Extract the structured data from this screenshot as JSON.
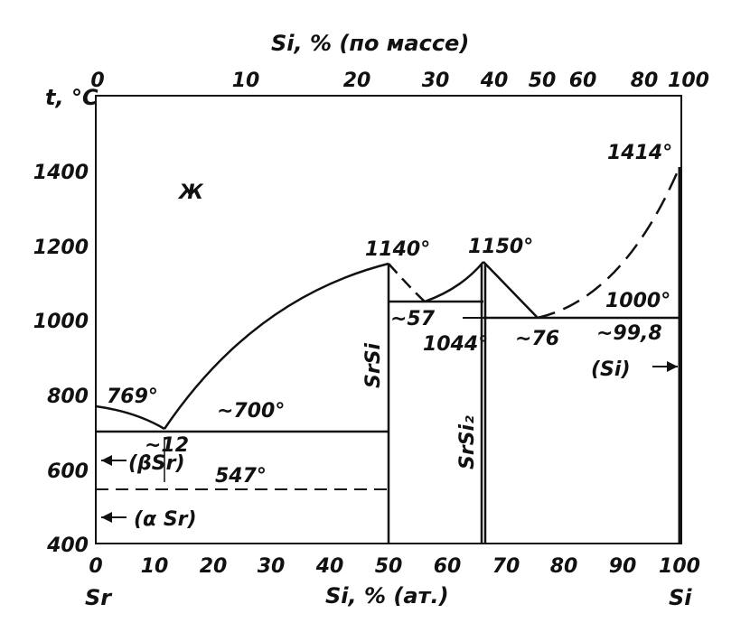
{
  "chart_data": {
    "type": "line",
    "top_axis": {
      "label": "Si, % (по массе)",
      "ticks": [
        "0",
        "10",
        "20",
        "30",
        "40",
        "50",
        "60",
        "80",
        "100"
      ]
    },
    "bottom_axis": {
      "label": "Si, % (ат.)",
      "ticks": [
        "0",
        "10",
        "20",
        "30",
        "40",
        "50",
        "60",
        "70",
        "80",
        "90",
        "100"
      ],
      "range": [
        0,
        100
      ]
    },
    "left_axis": {
      "label": "t, °C",
      "ticks": [
        "400",
        "600",
        "800",
        "1000",
        "1200",
        "1400"
      ],
      "range": [
        400,
        1600
      ]
    },
    "component_labels": {
      "left": "Sr",
      "right": "Si"
    },
    "phase_labels": {
      "liquid": "Ж",
      "beta_sr": "(βSr)",
      "alpha_sr": "(α Sr)",
      "si": "(Si)",
      "srsi": "SrSi",
      "srsi2": "SrSi₂"
    },
    "annotations": {
      "t769": "769°",
      "t700": "~700°",
      "c12": "~12",
      "t547": "547°",
      "t1140": "1140°",
      "t1150": "1150°",
      "c57": "~57",
      "t1044": "1044°",
      "c76": "~76",
      "t1000": "1000°",
      "c998": "~99,8",
      "t1414": "1414°"
    },
    "liquidus_points": [
      {
        "x": 0,
        "t": 769
      },
      {
        "x": 12,
        "t": 700
      },
      {
        "x": 50,
        "t": 1140
      },
      {
        "x": 57,
        "t": 1044
      },
      {
        "x": 66.7,
        "t": 1150
      },
      {
        "x": 76,
        "t": 1000
      },
      {
        "x": 100,
        "t": 1414
      }
    ],
    "horizontals": [
      {
        "t": 700,
        "x_from": 0,
        "x_to": 50
      },
      {
        "t": 547,
        "x_from": 0,
        "x_to": 50,
        "dashed": true
      },
      {
        "t": 1044,
        "x_from": 50,
        "x_to": 66.7
      },
      {
        "t": 1000,
        "x_from": 66.7,
        "x_to": 100
      }
    ]
  }
}
